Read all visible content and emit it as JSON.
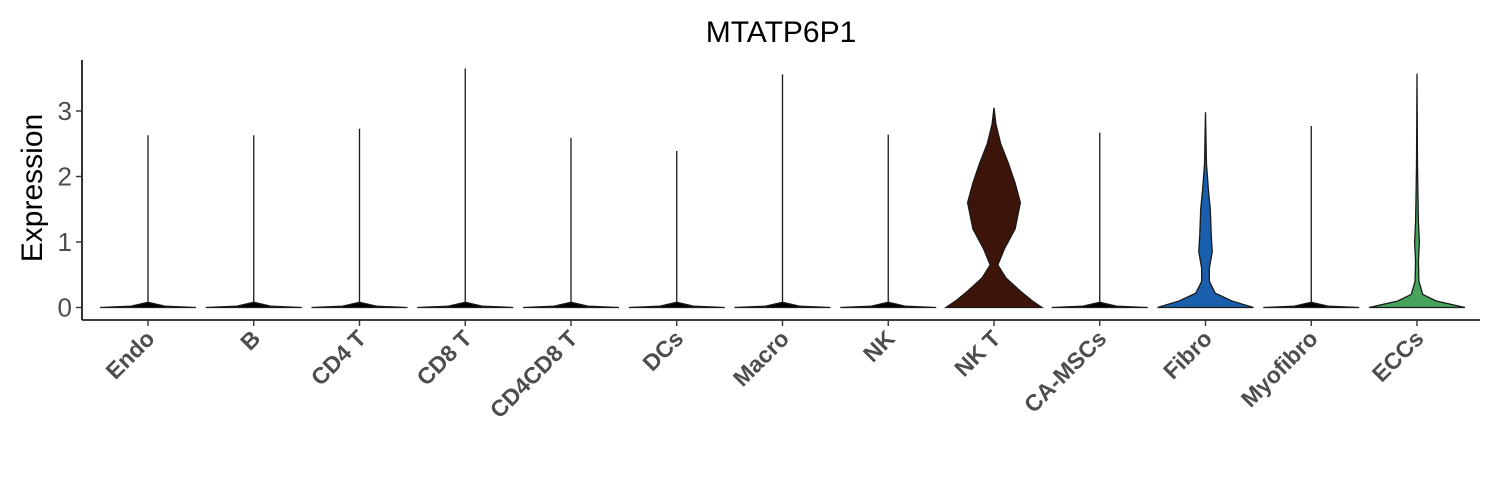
{
  "chart_data": {
    "type": "violin",
    "title": "MTATP6P1",
    "xlabel": "",
    "ylabel": "Expression",
    "ylim": [
      -0.2,
      3.8
    ],
    "yticks": [
      0,
      1,
      2,
      3
    ],
    "grid": false,
    "legend": "none",
    "categories": [
      "Endo",
      "B",
      "CD4 T",
      "CD8 T",
      "CD4CD8 T",
      "DCs",
      "Macro",
      "NK",
      "NK T",
      "CA-MSCs",
      "Fibro",
      "Myofibro",
      "ECCs"
    ],
    "series": [
      {
        "category": "Endo",
        "color": "#000000",
        "max": 2.63,
        "density": [
          [
            0,
            1
          ],
          [
            0.02,
            0.35
          ],
          [
            0.08,
            0
          ]
        ]
      },
      {
        "category": "B",
        "color": "#000000",
        "max": 2.63,
        "density": [
          [
            0,
            1
          ],
          [
            0.02,
            0.35
          ],
          [
            0.08,
            0
          ]
        ]
      },
      {
        "category": "CD4 T",
        "color": "#000000",
        "max": 2.73,
        "density": [
          [
            0,
            1
          ],
          [
            0.02,
            0.35
          ],
          [
            0.08,
            0
          ]
        ]
      },
      {
        "category": "CD8 T",
        "color": "#000000",
        "max": 3.65,
        "density": [
          [
            0,
            1
          ],
          [
            0.02,
            0.35
          ],
          [
            0.08,
            0
          ]
        ]
      },
      {
        "category": "CD4CD8 T",
        "color": "#000000",
        "max": 2.59,
        "density": [
          [
            0,
            1
          ],
          [
            0.02,
            0.35
          ],
          [
            0.08,
            0
          ]
        ]
      },
      {
        "category": "DCs",
        "color": "#000000",
        "max": 2.39,
        "density": [
          [
            0,
            1
          ],
          [
            0.02,
            0.35
          ],
          [
            0.08,
            0
          ]
        ]
      },
      {
        "category": "Macro",
        "color": "#000000",
        "max": 3.56,
        "density": [
          [
            0,
            1
          ],
          [
            0.02,
            0.35
          ],
          [
            0.08,
            0
          ]
        ]
      },
      {
        "category": "NK",
        "color": "#000000",
        "max": 2.64,
        "density": [
          [
            0,
            1
          ],
          [
            0.02,
            0.35
          ],
          [
            0.08,
            0
          ]
        ]
      },
      {
        "category": "NK T",
        "color": "#3d1409",
        "max": 3.05,
        "density": [
          [
            0,
            1
          ],
          [
            0.1,
            0.8
          ],
          [
            0.25,
            0.55
          ],
          [
            0.45,
            0.25
          ],
          [
            0.65,
            0.08
          ],
          [
            0.9,
            0.22
          ],
          [
            1.2,
            0.44
          ],
          [
            1.6,
            0.55
          ],
          [
            1.9,
            0.44
          ],
          [
            2.2,
            0.3
          ],
          [
            2.5,
            0.14
          ],
          [
            2.8,
            0.04
          ],
          [
            3.05,
            0
          ]
        ]
      },
      {
        "category": "CA-MSCs",
        "color": "#000000",
        "max": 2.67,
        "density": [
          [
            0,
            1
          ],
          [
            0.02,
            0.35
          ],
          [
            0.08,
            0
          ]
        ]
      },
      {
        "category": "Fibro",
        "color": "#1a5fad",
        "max": 2.98,
        "density": [
          [
            0,
            1
          ],
          [
            0.1,
            0.55
          ],
          [
            0.22,
            0.2
          ],
          [
            0.4,
            0.08
          ],
          [
            0.6,
            0.08
          ],
          [
            0.85,
            0.14
          ],
          [
            1.1,
            0.12
          ],
          [
            1.5,
            0.1
          ],
          [
            1.8,
            0.06
          ],
          [
            2.2,
            0.02
          ],
          [
            2.98,
            0
          ]
        ]
      },
      {
        "category": "Myofibro",
        "color": "#000000",
        "max": 2.77,
        "density": [
          [
            0,
            1
          ],
          [
            0.02,
            0.35
          ],
          [
            0.08,
            0
          ]
        ]
      },
      {
        "category": "ECCs",
        "color": "#45a35c",
        "max": 3.57,
        "density": [
          [
            0,
            1
          ],
          [
            0.1,
            0.4
          ],
          [
            0.2,
            0.12
          ],
          [
            0.4,
            0.04
          ],
          [
            0.7,
            0.03
          ],
          [
            1.0,
            0.05
          ],
          [
            1.3,
            0.03
          ],
          [
            1.7,
            0.02
          ],
          [
            2.2,
            0.01
          ],
          [
            3.57,
            0
          ]
        ]
      }
    ]
  }
}
